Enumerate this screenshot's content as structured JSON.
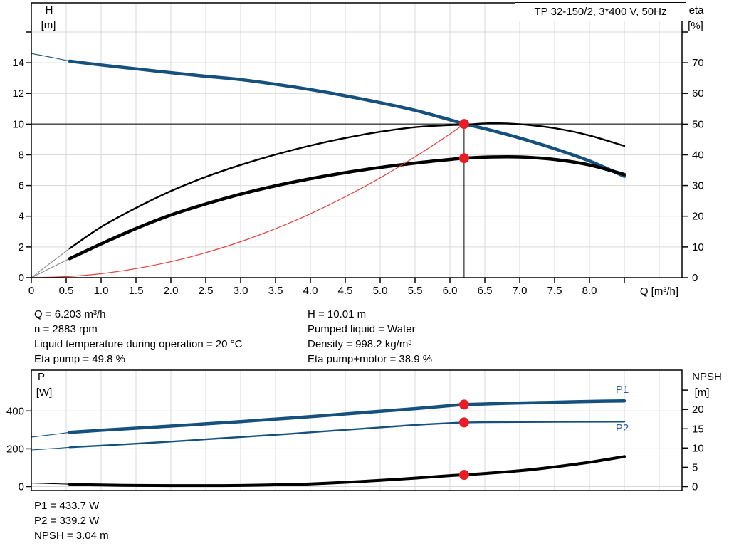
{
  "title_box": {
    "label": "TP 32-150/2, 3*400 V, 50Hz"
  },
  "info": {
    "left": [
      "Q = 6.203 m³/h",
      "n = 2883 rpm",
      "Liquid temperature during operation = 20 °C",
      "Eta pump = 49.8 %"
    ],
    "right": [
      "H = 10.01 m",
      "Pumped liquid = Water",
      "Density = 998.2 kg/m³",
      "Eta pump+motor = 38.9 %"
    ],
    "bottom": [
      "P1 = 433.7 W",
      "P2 = 339.2 W",
      "NPSH = 3.04 m"
    ]
  },
  "duty_point": {
    "Q_m3h": 6.203,
    "H_m": 10.01,
    "n_rpm": 2883,
    "liquid_temp_C": 20,
    "eta_pump_pct": 49.8,
    "eta_pump_motor_pct": 38.9,
    "pumped_liquid": "Water",
    "density_kg_m3": 998.2,
    "P1_W": 433.7,
    "P2_W": 339.2,
    "NPSH_m": 3.04
  },
  "colors": {
    "curve_blue": "#16517e",
    "label_blue": "#2e5e9e",
    "red_line": "#e2403c",
    "marker_red": "#ec1c24",
    "grid": "#d9d9d9",
    "thin_gray": "#8a8a8a",
    "axis": "#000000",
    "black": "#000000"
  },
  "chart_data": [
    {
      "type": "line",
      "title": "TP 32-150/2, 3*400 V, 50Hz",
      "x": {
        "label": "Q [m³/h]",
        "min": 0,
        "max": 9.327,
        "grid": [
          0.5,
          1,
          1.5,
          2,
          2.5,
          3,
          3.5,
          4,
          4.5,
          5,
          5.5,
          6,
          6.5,
          7,
          7.5,
          8,
          8.5,
          9
        ],
        "ticks": [
          {
            "v": 0,
            "l": "0"
          },
          {
            "v": 0.5,
            "l": "0.5"
          },
          {
            "v": 1,
            "l": "1.0"
          },
          {
            "v": 1.5,
            "l": "1.5"
          },
          {
            "v": 2,
            "l": "2.0"
          },
          {
            "v": 2.5,
            "l": "2.5"
          },
          {
            "v": 3,
            "l": "3.0"
          },
          {
            "v": 3.5,
            "l": "3.5"
          },
          {
            "v": 4,
            "l": "4.0"
          },
          {
            "v": 4.5,
            "l": "4.5"
          },
          {
            "v": 5,
            "l": "5.0"
          },
          {
            "v": 5.5,
            "l": "5.5"
          },
          {
            "v": 6,
            "l": "6.0"
          },
          {
            "v": 6.5,
            "l": "6.5"
          },
          {
            "v": 7,
            "l": "7.0"
          },
          {
            "v": 7.5,
            "l": "7.5"
          },
          {
            "v": 8,
            "l": "8.0"
          },
          {
            "v": 8.5,
            "l": ""
          }
        ]
      },
      "y_left": {
        "label": [
          "H",
          "[m]"
        ],
        "min": 0,
        "max": 17.9,
        "grid": [
          2,
          4,
          6,
          8,
          10,
          12,
          14,
          16
        ],
        "ticks": [
          {
            "v": 0,
            "l": "0"
          },
          {
            "v": 2,
            "l": "2"
          },
          {
            "v": 4,
            "l": "4"
          },
          {
            "v": 6,
            "l": "6"
          },
          {
            "v": 8,
            "l": "8"
          },
          {
            "v": 10,
            "l": "10"
          },
          {
            "v": 12,
            "l": "12"
          },
          {
            "v": 14,
            "l": "14"
          },
          {
            "v": 16,
            "l": ""
          }
        ]
      },
      "y_right": {
        "label": [
          "eta",
          "[%]"
        ],
        "min": 0,
        "max": 89.5,
        "ticks": [
          {
            "v": 0,
            "l": "0"
          },
          {
            "v": 10,
            "l": "10"
          },
          {
            "v": 20,
            "l": "20"
          },
          {
            "v": 30,
            "l": "30"
          },
          {
            "v": 40,
            "l": "40"
          },
          {
            "v": 50,
            "l": "50"
          },
          {
            "v": 60,
            "l": "60"
          },
          {
            "v": 70,
            "l": "70"
          },
          {
            "v": 80,
            "l": ""
          }
        ]
      },
      "crosshair": {
        "h": 10.01,
        "q": 6.203
      },
      "duty_points": [
        {
          "q": 6.203,
          "v": 10.01,
          "axis": "left"
        },
        {
          "q": 6.203,
          "v": 38.9,
          "axis": "right"
        }
      ],
      "series": [
        {
          "name": "qh-curve",
          "axis": "left",
          "color": "curve_blue",
          "width": 4.5,
          "lead_color": "curve_blue",
          "lead": [
            [
              0,
              14.6
            ],
            [
              0.3,
              14.34
            ],
            [
              0.55,
              14.1
            ]
          ],
          "points": [
            [
              0.55,
              14.1
            ],
            [
              1,
              13.85
            ],
            [
              1.5,
              13.6
            ],
            [
              2,
              13.35
            ],
            [
              2.5,
              13.12
            ],
            [
              3,
              12.9
            ],
            [
              3.5,
              12.6
            ],
            [
              4,
              12.25
            ],
            [
              4.5,
              11.85
            ],
            [
              5,
              11.4
            ],
            [
              5.5,
              10.9
            ],
            [
              6,
              10.28
            ],
            [
              6.203,
              10.01
            ],
            [
              6.5,
              9.7
            ],
            [
              7,
              9.1
            ],
            [
              7.5,
              8.4
            ],
            [
              8,
              7.6
            ],
            [
              8.5,
              6.6
            ]
          ]
        },
        {
          "name": "eta-pump-curve",
          "axis": "right",
          "color": "black",
          "width": 2.4,
          "lead_color": "thin_gray",
          "lead": [
            [
              0,
              0
            ],
            [
              0.3,
              5.2
            ],
            [
              0.55,
              9.5
            ]
          ],
          "points": [
            [
              0.55,
              9.5
            ],
            [
              1,
              16.5
            ],
            [
              1.5,
              22.7
            ],
            [
              2,
              28.2
            ],
            [
              2.5,
              32.8
            ],
            [
              3,
              36.7
            ],
            [
              3.5,
              40.1
            ],
            [
              4,
              43
            ],
            [
              4.5,
              45.5
            ],
            [
              5,
              47.5
            ],
            [
              5.5,
              49
            ],
            [
              6,
              49.7
            ],
            [
              6.203,
              49.8
            ],
            [
              6.6,
              50.3
            ],
            [
              7,
              50
            ],
            [
              7.5,
              48.7
            ],
            [
              8,
              46.3
            ],
            [
              8.5,
              42.9
            ]
          ]
        },
        {
          "name": "eta-pump-motor-curve",
          "axis": "right",
          "color": "black",
          "width": 4.5,
          "lead_color": "thin_gray",
          "lead": [
            [
              0,
              0
            ],
            [
              0.3,
              3.4
            ],
            [
              0.55,
              6.2
            ]
          ],
          "points": [
            [
              0.55,
              6.2
            ],
            [
              1,
              11
            ],
            [
              1.5,
              16
            ],
            [
              2,
              20.4
            ],
            [
              2.5,
              24
            ],
            [
              3,
              27.2
            ],
            [
              3.5,
              29.9
            ],
            [
              4,
              32.2
            ],
            [
              4.5,
              34.2
            ],
            [
              5,
              35.9
            ],
            [
              5.5,
              37.3
            ],
            [
              6,
              38.5
            ],
            [
              6.203,
              38.9
            ],
            [
              6.6,
              39.3
            ],
            [
              7,
              39.3
            ],
            [
              7.5,
              38.5
            ],
            [
              8,
              36.7
            ],
            [
              8.5,
              33.6
            ]
          ]
        },
        {
          "name": "system-curve",
          "axis": "left",
          "color": "red_line",
          "width": 1.2,
          "points": [
            [
              0,
              0
            ],
            [
              0.5,
              0.07
            ],
            [
              1,
              0.26
            ],
            [
              1.5,
              0.59
            ],
            [
              2,
              1.04
            ],
            [
              2.5,
              1.63
            ],
            [
              3,
              2.34
            ],
            [
              3.5,
              3.19
            ],
            [
              4,
              4.16
            ],
            [
              4.5,
              5.27
            ],
            [
              5,
              6.5
            ],
            [
              5.5,
              7.87
            ],
            [
              6,
              9.36
            ],
            [
              6.203,
              10.01
            ]
          ]
        }
      ]
    },
    {
      "type": "line",
      "title": "",
      "x": {
        "label": "",
        "min": 0,
        "max": 9.327,
        "grid": [
          0.5,
          1,
          1.5,
          2,
          2.5,
          3,
          3.5,
          4,
          4.5,
          5,
          5.5,
          6,
          6.5,
          7,
          7.5,
          8,
          8.5,
          9
        ],
        "ticks": []
      },
      "y_left": {
        "label": [
          "P",
          "[W]"
        ],
        "min": -20.7,
        "max": 615.8,
        "grid": [
          0,
          200,
          400
        ],
        "ticks": [
          {
            "v": 0,
            "l": "0"
          },
          {
            "v": 200,
            "l": "200"
          },
          {
            "v": 400,
            "l": "400"
          }
        ]
      },
      "y_right": {
        "label": [
          "NPSH",
          "[m]"
        ],
        "min": -1.02,
        "max": 30.2,
        "ticks": [
          {
            "v": 0,
            "l": "0"
          },
          {
            "v": 5,
            "l": "5"
          },
          {
            "v": 10,
            "l": "10"
          },
          {
            "v": 15,
            "l": "15"
          },
          {
            "v": 20,
            "l": "20"
          },
          {
            "v": 25,
            "l": ""
          }
        ]
      },
      "duty_points": [
        {
          "q": 6.203,
          "v": 433.7,
          "axis": "left"
        },
        {
          "q": 6.203,
          "v": 339.2,
          "axis": "left"
        },
        {
          "q": 6.203,
          "v": 3.04,
          "axis": "right"
        }
      ],
      "series_labels": [
        {
          "text": "P1"
        },
        {
          "text": "P2"
        }
      ],
      "series": [
        {
          "name": "p1-curve",
          "axis": "left",
          "color": "curve_blue",
          "width": 4.5,
          "lead_color": "curve_blue",
          "lead": [
            [
              0,
              262
            ],
            [
              0.3,
              275
            ],
            [
              0.55,
              287
            ]
          ],
          "points": [
            [
              0.55,
              287
            ],
            [
              1,
              298
            ],
            [
              1.5,
              309
            ],
            [
              2,
              320
            ],
            [
              2.5,
              332
            ],
            [
              3,
              344
            ],
            [
              3.5,
              357
            ],
            [
              4,
              370
            ],
            [
              4.5,
              384
            ],
            [
              5,
              398
            ],
            [
              5.5,
              412
            ],
            [
              6,
              428
            ],
            [
              6.203,
              433.7
            ],
            [
              6.5,
              437
            ],
            [
              7,
              442
            ],
            [
              7.5,
              446
            ],
            [
              8,
              450
            ],
            [
              8.5,
              453
            ]
          ]
        },
        {
          "name": "p2-curve",
          "axis": "left",
          "color": "curve_blue",
          "width": 2.4,
          "lead_color": "curve_blue",
          "lead": [
            [
              0,
              194
            ],
            [
              0.3,
              201
            ],
            [
              0.55,
              208
            ]
          ],
          "points": [
            [
              0.55,
              208
            ],
            [
              1,
              217
            ],
            [
              1.5,
              227
            ],
            [
              2,
              238
            ],
            [
              2.5,
              250
            ],
            [
              3,
              262
            ],
            [
              3.5,
              274
            ],
            [
              4,
              287
            ],
            [
              4.5,
              300
            ],
            [
              5,
              313
            ],
            [
              5.5,
              326
            ],
            [
              6,
              336
            ],
            [
              6.203,
              339.2
            ],
            [
              6.5,
              340.5
            ],
            [
              7,
              341.5
            ],
            [
              8,
              343
            ],
            [
              8.5,
              343.5
            ]
          ]
        },
        {
          "name": "npsh-curve",
          "axis": "right",
          "color": "black",
          "width": 4,
          "lead_color": "black",
          "lead": [
            [
              0,
              0.9
            ],
            [
              0.3,
              0.75
            ],
            [
              0.55,
              0.6
            ]
          ],
          "points": [
            [
              0.55,
              0.6
            ],
            [
              1,
              0.4
            ],
            [
              1.5,
              0.3
            ],
            [
              2,
              0.25
            ],
            [
              2.5,
              0.25
            ],
            [
              3,
              0.3
            ],
            [
              3.5,
              0.45
            ],
            [
              4,
              0.7
            ],
            [
              4.5,
              1.1
            ],
            [
              5,
              1.6
            ],
            [
              5.5,
              2.2
            ],
            [
              6,
              2.85
            ],
            [
              6.203,
              3.04
            ],
            [
              6.5,
              3.4
            ],
            [
              7,
              4.1
            ],
            [
              7.5,
              5.1
            ],
            [
              8,
              6.3
            ],
            [
              8.5,
              7.8
            ]
          ]
        }
      ]
    }
  ]
}
